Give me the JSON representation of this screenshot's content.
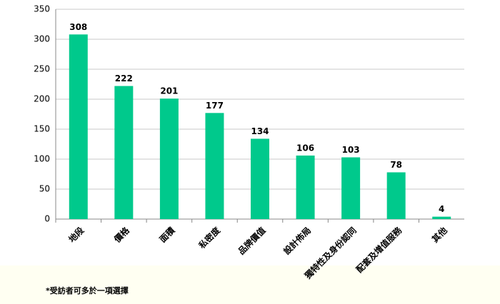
{
  "chart_data": {
    "type": "bar",
    "categories": [
      "地段",
      "價格",
      "面積",
      "私密度",
      "品牌價值",
      "設計佈局",
      "獨特性及身份認同",
      "配套及增值服務",
      "其他"
    ],
    "values": [
      308,
      222,
      201,
      177,
      134,
      106,
      103,
      78,
      4
    ],
    "color": "#00c98c",
    "ylim": [
      0,
      350
    ],
    "yticks": [
      0,
      50,
      100,
      150,
      200,
      250,
      300,
      350
    ],
    "grid": true,
    "note": "*受訪者可多於一項選擇"
  }
}
